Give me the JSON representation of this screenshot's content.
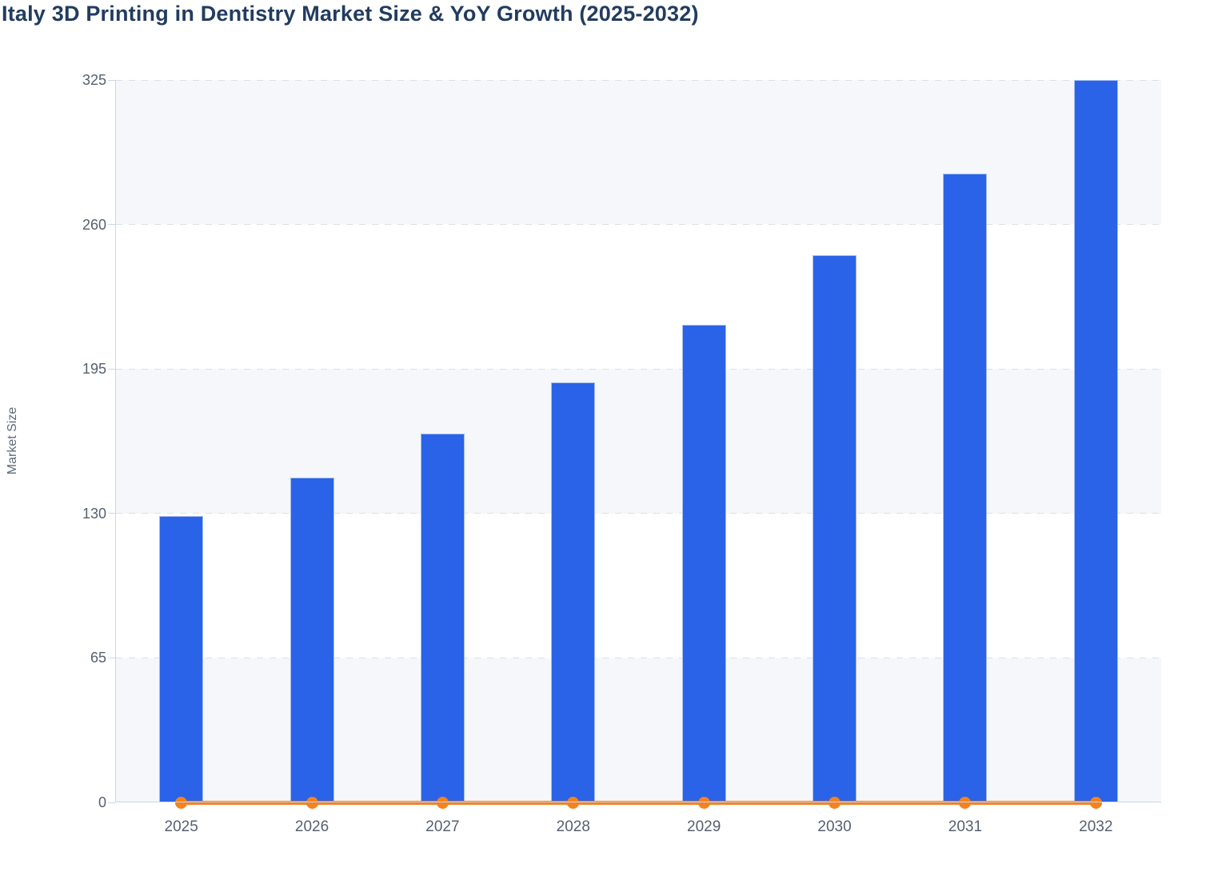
{
  "chart_data": {
    "type": "bar",
    "subtype": "column-with-line-overlay",
    "title": "Italy 3D Printing in Dentistry Market Size & YoY Growth (2025-2032)",
    "categories": [
      "2025",
      "2026",
      "2027",
      "2028",
      "2029",
      "2030",
      "2031",
      "2032"
    ],
    "series": [
      {
        "name": "Market Size",
        "type": "bar",
        "color": "#2a63e8",
        "values": [
          129,
          146,
          166,
          189,
          215,
          246,
          283,
          325
        ]
      },
      {
        "name": "YoY Growth",
        "type": "line",
        "color": "#f5821e",
        "marker": "circle",
        "values": [
          0,
          0,
          0,
          0,
          0,
          0,
          0,
          0
        ],
        "note": "line renders flat along the zero baseline with a round marker at each year"
      }
    ],
    "xlabel": "",
    "ylabel": "Market Size",
    "ylim": [
      0,
      325
    ],
    "yticks": [
      0,
      65,
      130,
      195,
      260,
      325
    ],
    "grid": "horizontal-dashed",
    "plot_bands": "alternating #f5f7fa and #ffffff",
    "legend": "none"
  }
}
